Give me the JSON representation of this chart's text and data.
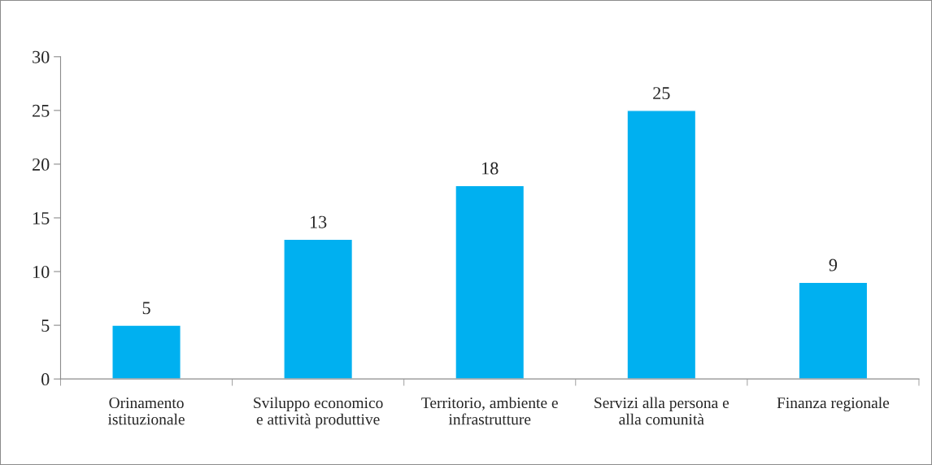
{
  "chart_data": {
    "type": "bar",
    "categories": [
      "Orinamento\nistituzionale",
      "Sviluppo economico\ne attività produttive",
      "Territorio, ambiente e\ninfrastrutture",
      "Servizi alla persona e\nalla comunità",
      "Finanza regionale"
    ],
    "values": [
      5,
      13,
      18,
      25,
      9
    ],
    "color": "#00b0f0",
    "ylim": [
      0,
      30
    ],
    "yticks": [
      0,
      5,
      10,
      15,
      20,
      25,
      30
    ],
    "grid": false,
    "data_labels": true
  }
}
